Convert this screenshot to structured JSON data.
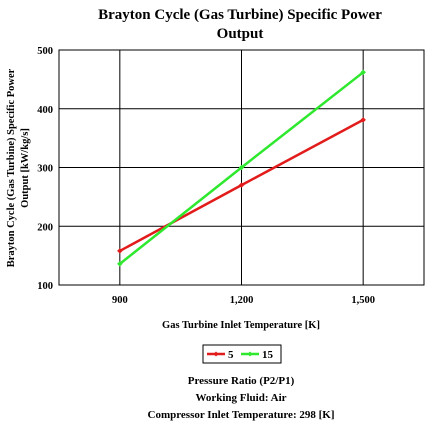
{
  "chart_data": {
    "type": "line",
    "title_lines": [
      "Brayton Cycle (Gas Turbine) Specific Power",
      "Output"
    ],
    "xlabel": "Gas Turbine Inlet Temperature [K]",
    "ylabel_lines": [
      "Brayton Cycle (Gas Turbine) Specific Power",
      "Output [kW/kg/s]"
    ],
    "x_ticks": [
      900,
      1200,
      1500
    ],
    "x_tick_labels": [
      "900",
      "1,200",
      "1,500"
    ],
    "xlim": [
      750,
      1650
    ],
    "y_ticks": [
      100,
      200,
      300,
      400,
      500
    ],
    "y_tick_labels": [
      "100",
      "200",
      "300",
      "400",
      "500"
    ],
    "ylim": [
      100,
      500
    ],
    "grid": true,
    "legend_position": "bottom",
    "series": [
      {
        "name": "5",
        "color": "#e21b1b",
        "x": [
          900,
          1200,
          1500
        ],
        "y": [
          158,
          270,
          381
        ]
      },
      {
        "name": "15",
        "color": "#2ee82e",
        "x": [
          900,
          1200,
          1500
        ],
        "y": [
          136,
          300,
          462
        ]
      }
    ],
    "notes": [
      "Pressure Ratio (P2/P1)",
      "Working Fluid:  Air",
      "Compressor Inlet Temperature:  298 [K]"
    ]
  }
}
